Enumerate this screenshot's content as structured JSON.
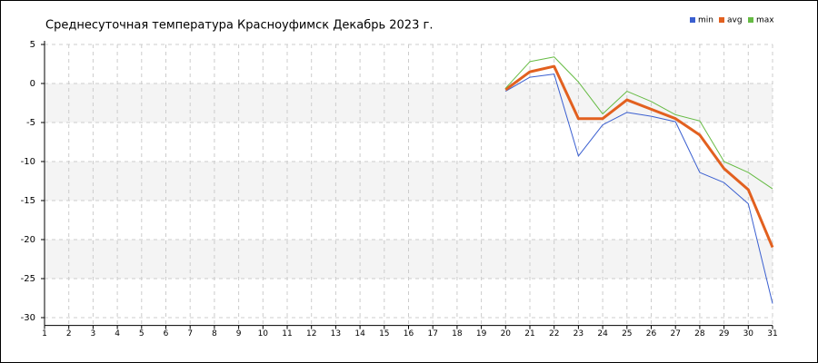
{
  "chart_data": {
    "type": "line",
    "title": "Среднесуточная температура Красноуфимск  Декабрь 2023 г.",
    "x": [
      1,
      2,
      3,
      4,
      5,
      6,
      7,
      8,
      9,
      10,
      11,
      12,
      13,
      14,
      15,
      16,
      17,
      18,
      19,
      20,
      21,
      22,
      23,
      24,
      25,
      26,
      27,
      28,
      29,
      30,
      31
    ],
    "series": [
      {
        "name": "min",
        "color": "#3a5fd0",
        "width": 1,
        "values": [
          null,
          null,
          null,
          null,
          null,
          null,
          null,
          null,
          null,
          null,
          null,
          null,
          null,
          null,
          null,
          null,
          null,
          null,
          null,
          -1.0,
          0.8,
          1.2,
          -9.3,
          -5.3,
          -3.7,
          -4.2,
          -4.9,
          -11.4,
          -12.7,
          -15.4,
          -28.2
        ]
      },
      {
        "name": "avg",
        "color": "#e2601f",
        "width": 3,
        "values": [
          null,
          null,
          null,
          null,
          null,
          null,
          null,
          null,
          null,
          null,
          null,
          null,
          null,
          null,
          null,
          null,
          null,
          null,
          null,
          -0.8,
          1.5,
          2.2,
          -4.5,
          -4.5,
          -2.1,
          -3.3,
          -4.5,
          -6.6,
          -10.9,
          -13.6,
          -21.0
        ]
      },
      {
        "name": "max",
        "color": "#66bb44",
        "width": 1,
        "values": [
          null,
          null,
          null,
          null,
          null,
          null,
          null,
          null,
          null,
          null,
          null,
          null,
          null,
          null,
          null,
          null,
          null,
          null,
          null,
          -0.6,
          2.8,
          3.4,
          0.2,
          -3.9,
          -1.0,
          -2.3,
          -4.0,
          -4.8,
          -10.0,
          -11.4,
          -13.5
        ]
      }
    ],
    "xlim": [
      1,
      31
    ],
    "xticks": [
      1,
      2,
      3,
      4,
      5,
      6,
      7,
      8,
      9,
      10,
      11,
      12,
      13,
      14,
      15,
      16,
      17,
      18,
      19,
      20,
      21,
      22,
      23,
      24,
      25,
      26,
      27,
      28,
      29,
      30,
      31
    ],
    "ylim": [
      -31,
      5
    ],
    "yticks": [
      5,
      0,
      -5,
      -10,
      -15,
      -20,
      -25,
      -30
    ],
    "grid": true,
    "legend": "top-right"
  }
}
